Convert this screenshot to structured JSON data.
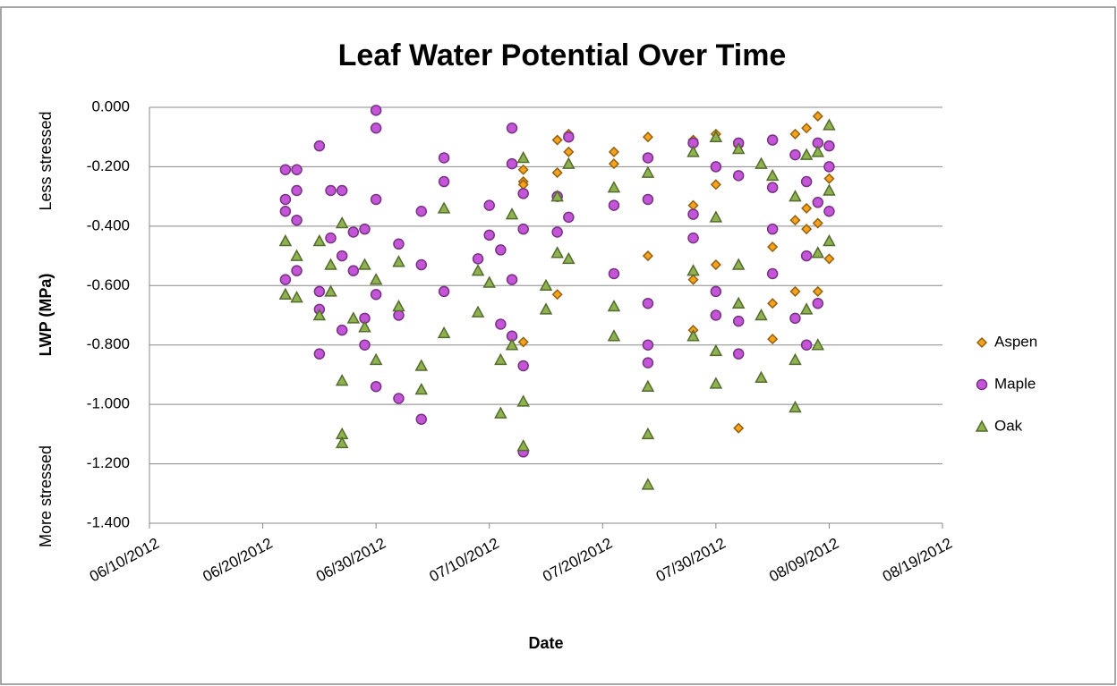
{
  "chart_data": {
    "type": "scatter",
    "title": "Leaf Water Potential Over Time",
    "x_label": "Date",
    "y_label": "LWP (MPa)",
    "annotations": [
      "Less stressed",
      "More stressed"
    ],
    "xlim": [
      "06/10/2012",
      "08/19/2012"
    ],
    "xticks": [
      "06/10/2012",
      "06/20/2012",
      "06/30/2012",
      "07/10/2012",
      "07/20/2012",
      "07/30/2012",
      "08/09/2012",
      "08/19/2012"
    ],
    "ylim": [
      -1.4,
      0
    ],
    "yticks": [
      {
        "value": 0,
        "label": "0.000"
      },
      {
        "value": -0.2,
        "label": "-0.200"
      },
      {
        "value": -0.4,
        "label": "-0.400"
      },
      {
        "value": -0.6,
        "label": "-0.600"
      },
      {
        "value": -0.8,
        "label": "-0.800"
      },
      {
        "value": -1,
        "label": "-1.000"
      },
      {
        "value": -1.2,
        "label": "-1.200"
      },
      {
        "value": -1.4,
        "label": "-1.400"
      }
    ],
    "grid": true,
    "legend": "right",
    "series": [
      {
        "name": "Aspen",
        "color": "#f6a21d",
        "marker": "diamond",
        "x": [
          "07/13/2012",
          "07/13/2012",
          "07/13/2012",
          "07/13/2012",
          "07/16/2012",
          "07/16/2012",
          "07/16/2012",
          "07/17/2012",
          "07/17/2012",
          "07/21/2012",
          "07/21/2012",
          "07/24/2012",
          "07/24/2012",
          "07/28/2012",
          "07/28/2012",
          "07/28/2012",
          "07/28/2012",
          "07/30/2012",
          "07/30/2012",
          "07/30/2012",
          "08/01/2012",
          "08/01/2012",
          "08/04/2012",
          "08/04/2012",
          "08/04/2012",
          "08/06/2012",
          "08/06/2012",
          "08/06/2012",
          "08/07/2012",
          "08/07/2012",
          "08/07/2012",
          "08/08/2012",
          "08/08/2012",
          "08/08/2012",
          "08/09/2012",
          "08/09/2012"
        ],
        "values": [
          -0.21,
          -0.25,
          -0.79,
          -0.26,
          -0.63,
          -0.11,
          -0.22,
          -0.09,
          -0.15,
          -0.15,
          -0.19,
          -0.1,
          -0.5,
          -0.33,
          -0.58,
          -0.75,
          -0.11,
          -0.09,
          -0.26,
          -0.53,
          -0.13,
          -1.08,
          -0.47,
          -0.66,
          -0.78,
          -0.09,
          -0.38,
          -0.62,
          -0.07,
          -0.34,
          -0.41,
          -0.03,
          -0.62,
          -0.39,
          -0.24,
          -0.51
        ]
      },
      {
        "name": "Maple",
        "color": "#c455d8",
        "marker": "circle",
        "x": [
          "06/22/2012",
          "06/22/2012",
          "06/22/2012",
          "06/22/2012",
          "06/23/2012",
          "06/23/2012",
          "06/23/2012",
          "06/23/2012",
          "06/25/2012",
          "06/25/2012",
          "06/25/2012",
          "06/25/2012",
          "06/26/2012",
          "06/26/2012",
          "06/27/2012",
          "06/27/2012",
          "06/27/2012",
          "06/28/2012",
          "06/28/2012",
          "06/29/2012",
          "06/29/2012",
          "06/29/2012",
          "06/30/2012",
          "06/30/2012",
          "06/30/2012",
          "06/30/2012",
          "06/30/2012",
          "07/02/2012",
          "07/02/2012",
          "07/02/2012",
          "07/04/2012",
          "07/04/2012",
          "07/04/2012",
          "07/06/2012",
          "07/06/2012",
          "07/06/2012",
          "07/09/2012",
          "07/10/2012",
          "07/10/2012",
          "07/11/2012",
          "07/11/2012",
          "07/12/2012",
          "07/12/2012",
          "07/12/2012",
          "07/12/2012",
          "07/13/2012",
          "07/13/2012",
          "07/13/2012",
          "07/13/2012",
          "07/16/2012",
          "07/16/2012",
          "07/17/2012",
          "07/17/2012",
          "07/21/2012",
          "07/21/2012",
          "07/24/2012",
          "07/24/2012",
          "07/24/2012",
          "07/24/2012",
          "07/24/2012",
          "07/28/2012",
          "07/28/2012",
          "07/28/2012",
          "07/30/2012",
          "07/30/2012",
          "07/30/2012",
          "08/01/2012",
          "08/01/2012",
          "08/01/2012",
          "08/01/2012",
          "08/04/2012",
          "08/04/2012",
          "08/04/2012",
          "08/04/2012",
          "08/06/2012",
          "08/06/2012",
          "08/07/2012",
          "08/07/2012",
          "08/07/2012",
          "08/08/2012",
          "08/08/2012",
          "08/08/2012",
          "08/09/2012",
          "08/09/2012",
          "08/09/2012"
        ],
        "values": [
          -0.21,
          -0.31,
          -0.35,
          -0.58,
          -0.21,
          -0.28,
          -0.38,
          -0.55,
          -0.13,
          -0.62,
          -0.68,
          -0.83,
          -0.28,
          -0.44,
          -0.28,
          -0.5,
          -0.75,
          -0.42,
          -0.55,
          -0.41,
          -0.71,
          -0.8,
          -0.01,
          -0.07,
          -0.31,
          -0.94,
          -0.63,
          -0.46,
          -0.98,
          -0.7,
          -0.35,
          -0.53,
          -1.05,
          -0.17,
          -0.25,
          -0.62,
          -0.51,
          -0.33,
          -0.43,
          -0.48,
          -0.73,
          -0.07,
          -0.19,
          -0.58,
          -0.77,
          -0.29,
          -0.41,
          -0.87,
          -1.16,
          -0.3,
          -0.42,
          -0.1,
          -0.37,
          -0.33,
          -0.56,
          -0.17,
          -0.31,
          -0.66,
          -0.8,
          -0.86,
          -0.12,
          -0.36,
          -0.44,
          -0.2,
          -0.62,
          -0.7,
          -0.12,
          -0.23,
          -0.72,
          -0.83,
          -0.11,
          -0.27,
          -0.41,
          -0.56,
          -0.16,
          -0.71,
          -0.25,
          -0.5,
          -0.8,
          -0.12,
          -0.32,
          -0.66,
          -0.13,
          -0.2,
          -0.35
        ]
      },
      {
        "name": "Oak",
        "color": "#8db24e",
        "marker": "triangle",
        "x": [
          "06/22/2012",
          "06/22/2012",
          "06/23/2012",
          "06/23/2012",
          "06/25/2012",
          "06/25/2012",
          "06/26/2012",
          "06/26/2012",
          "06/27/2012",
          "06/27/2012",
          "06/27/2012",
          "06/27/2012",
          "06/28/2012",
          "06/29/2012",
          "06/29/2012",
          "06/30/2012",
          "06/30/2012",
          "07/02/2012",
          "07/02/2012",
          "07/04/2012",
          "07/04/2012",
          "07/06/2012",
          "07/06/2012",
          "07/09/2012",
          "07/09/2012",
          "07/10/2012",
          "07/11/2012",
          "07/11/2012",
          "07/12/2012",
          "07/12/2012",
          "07/13/2012",
          "07/13/2012",
          "07/13/2012",
          "07/15/2012",
          "07/15/2012",
          "07/16/2012",
          "07/16/2012",
          "07/17/2012",
          "07/17/2012",
          "07/21/2012",
          "07/21/2012",
          "07/21/2012",
          "07/24/2012",
          "07/24/2012",
          "07/24/2012",
          "07/24/2012",
          "07/28/2012",
          "07/28/2012",
          "07/28/2012",
          "07/30/2012",
          "07/30/2012",
          "07/30/2012",
          "07/30/2012",
          "08/01/2012",
          "08/01/2012",
          "08/01/2012",
          "08/03/2012",
          "08/03/2012",
          "08/03/2012",
          "08/04/2012",
          "08/06/2012",
          "08/06/2012",
          "08/06/2012",
          "08/07/2012",
          "08/07/2012",
          "08/08/2012",
          "08/08/2012",
          "08/08/2012",
          "08/09/2012",
          "08/09/2012",
          "08/09/2012"
        ],
        "values": [
          -0.45,
          -0.63,
          -0.5,
          -0.64,
          -0.45,
          -0.7,
          -0.53,
          -0.62,
          -0.39,
          -0.92,
          -1.1,
          -1.13,
          -0.71,
          -0.53,
          -0.74,
          -0.58,
          -0.85,
          -0.52,
          -0.67,
          -0.87,
          -0.95,
          -0.34,
          -0.76,
          -0.55,
          -0.69,
          -0.59,
          -0.85,
          -1.03,
          -0.36,
          -0.8,
          -0.17,
          -0.99,
          -1.14,
          -0.6,
          -0.68,
          -0.3,
          -0.49,
          -0.19,
          -0.51,
          -0.27,
          -0.67,
          -0.77,
          -0.22,
          -0.94,
          -1.1,
          -1.27,
          -0.15,
          -0.55,
          -0.77,
          -0.1,
          -0.37,
          -0.82,
          -0.93,
          -0.14,
          -0.53,
          -0.66,
          -0.19,
          -0.7,
          -0.91,
          -0.23,
          -0.3,
          -1.01,
          -0.85,
          -0.16,
          -0.68,
          -0.15,
          -0.49,
          -0.8,
          -0.06,
          -0.28,
          -0.45
        ]
      }
    ]
  }
}
